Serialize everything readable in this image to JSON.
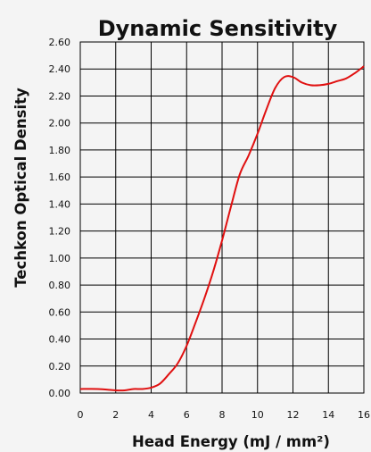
{
  "chart_data": {
    "type": "line",
    "title": "Dynamic Sensitivity",
    "xlabel": "Head Energy (mJ / mm²)",
    "ylabel": "Techkon Optical Density",
    "xlim": [
      0,
      16
    ],
    "ylim": [
      0,
      2.6
    ],
    "x_ticks": [
      "0",
      "2",
      "4",
      "6",
      "8",
      "10",
      "12",
      "14",
      "16"
    ],
    "y_ticks": [
      "0.00",
      "0.20",
      "0.40",
      "0.60",
      "0.80",
      "1.00",
      "1.20",
      "1.40",
      "1.60",
      "1.80",
      "2.00",
      "2.20",
      "2.40",
      "2.60"
    ],
    "grid": true,
    "line_color": "#e01010",
    "series": [
      {
        "x": [
          0,
          1,
          2,
          2.5,
          3,
          3.5,
          4,
          4.5,
          5,
          5.5,
          6,
          6.5,
          7,
          7.5,
          8,
          8.5,
          9,
          9.5,
          10,
          10.5,
          11,
          11.5,
          12,
          12.5,
          13,
          13.5,
          14,
          14.5,
          15,
          15.5,
          16
        ],
        "y": [
          0.03,
          0.03,
          0.02,
          0.02,
          0.03,
          0.03,
          0.04,
          0.07,
          0.14,
          0.22,
          0.35,
          0.52,
          0.7,
          0.9,
          1.13,
          1.38,
          1.62,
          1.76,
          1.92,
          2.1,
          2.26,
          2.34,
          2.34,
          2.3,
          2.28,
          2.28,
          2.29,
          2.31,
          2.33,
          2.37,
          2.42
        ]
      }
    ]
  }
}
